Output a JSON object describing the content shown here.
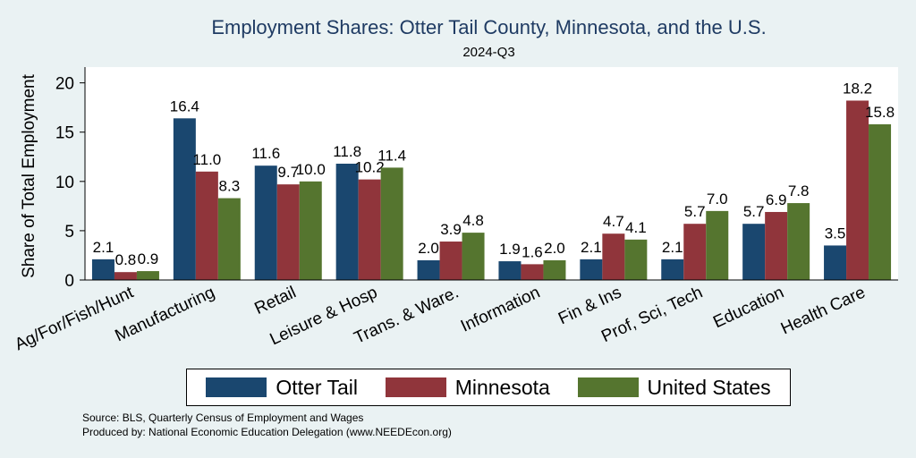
{
  "chart_data": {
    "type": "bar",
    "title": "Employment Shares: Otter Tail County, Minnesota, and the U.S.",
    "subtitle": "2024-Q3",
    "xlabel": "",
    "ylabel": "Share of Total Employment",
    "ylim": [
      0,
      21.6
    ],
    "yticks": [
      0,
      5,
      10,
      15,
      20
    ],
    "grid": false,
    "legend_position": "bottom",
    "categories": [
      "Ag/For/Fish/Hunt",
      "Manufacturing",
      "Retail",
      "Leisure & Hosp",
      "Trans. & Ware.",
      "Information",
      "Fin & Ins",
      "Prof, Sci, Tech",
      "Education",
      "Health Care"
    ],
    "series": [
      {
        "name": "Otter Tail",
        "color": "#1a476f",
        "values": [
          2.1,
          16.4,
          11.6,
          11.8,
          2.0,
          1.9,
          2.1,
          2.1,
          5.7,
          3.5
        ]
      },
      {
        "name": "Minnesota",
        "color": "#90353b",
        "values": [
          0.8,
          11.0,
          9.7,
          10.2,
          3.9,
          1.6,
          4.7,
          5.7,
          6.9,
          18.2
        ]
      },
      {
        "name": "United States",
        "color": "#55752f",
        "values": [
          0.9,
          8.3,
          10.0,
          11.4,
          4.8,
          2.0,
          4.1,
          7.0,
          7.8,
          15.8
        ]
      }
    ]
  },
  "source": {
    "line1": "Source: BLS, Quarterly Census of Employment and Wages",
    "line2": "Produced by: National Economic Education Delegation (www.NEEDEcon.org)"
  }
}
